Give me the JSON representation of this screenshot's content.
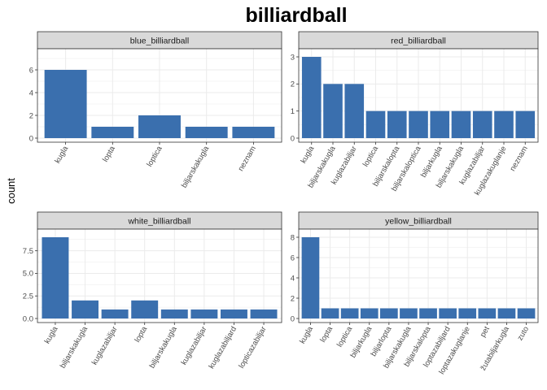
{
  "title": "billiardball",
  "ylabel": "count",
  "colors": {
    "bar": "#3a6fae",
    "strip_fill": "#d9d9d9",
    "strip_border": "#333333",
    "panel_border": "#333333",
    "grid": "#ebebeb"
  },
  "chart_data": [
    {
      "type": "bar",
      "facet": "blue_billiardball",
      "categories": [
        "kugla",
        "lopta",
        "loptica",
        "biljarskakugla",
        "neznam"
      ],
      "values": [
        6,
        1,
        2,
        1,
        1
      ],
      "yticks": [
        "0",
        "2",
        "4",
        "6"
      ],
      "ylim": [
        0,
        7.5
      ],
      "grid": true
    },
    {
      "type": "bar",
      "facet": "red_billiardball",
      "categories": [
        "kugla",
        "biljarskakugla",
        "kuglazabiljar",
        "loptica",
        "biljarskalopta",
        "biljarskaloptica",
        "biljarkugla",
        "biljarskakugla",
        "kuglazabiljar",
        "kuglazakuglanje",
        "neznam"
      ],
      "values": [
        3,
        2,
        2,
        1,
        1,
        1,
        1,
        1,
        1,
        1,
        1
      ],
      "yticks": [
        "0",
        "1",
        "2",
        "3"
      ],
      "ylim": [
        0,
        3.15
      ],
      "grid": true
    },
    {
      "type": "bar",
      "facet": "white_billiardball",
      "categories": [
        "kugla",
        "biljarskakugla",
        "kuglazabiljar",
        "lopta",
        "biljarskakugla",
        "kuglazabiljar",
        "kuglazabiljard",
        "lopticazabiljar"
      ],
      "values": [
        9,
        2,
        1,
        2,
        1,
        1,
        1,
        1
      ],
      "yticks": [
        "0.0",
        "2.5",
        "5.0",
        "7.5"
      ],
      "ylim": [
        0,
        9.45
      ],
      "grid": true
    },
    {
      "type": "bar",
      "facet": "yellow_billiardball",
      "categories": [
        "kugla",
        "lopta",
        "loptica",
        "biljarkugla",
        "biljarlopta",
        "biljarskakugla",
        "biljarskalopta",
        "loptazabiljard",
        "loptazakuglanje",
        "pet",
        "žutabiljarkugla",
        "zuto"
      ],
      "values": [
        8,
        1,
        1,
        1,
        1,
        1,
        1,
        1,
        1,
        1,
        1,
        1
      ],
      "yticks": [
        "0",
        "2",
        "4",
        "6",
        "8"
      ],
      "ylim": [
        0,
        8.4
      ],
      "grid": true
    }
  ]
}
